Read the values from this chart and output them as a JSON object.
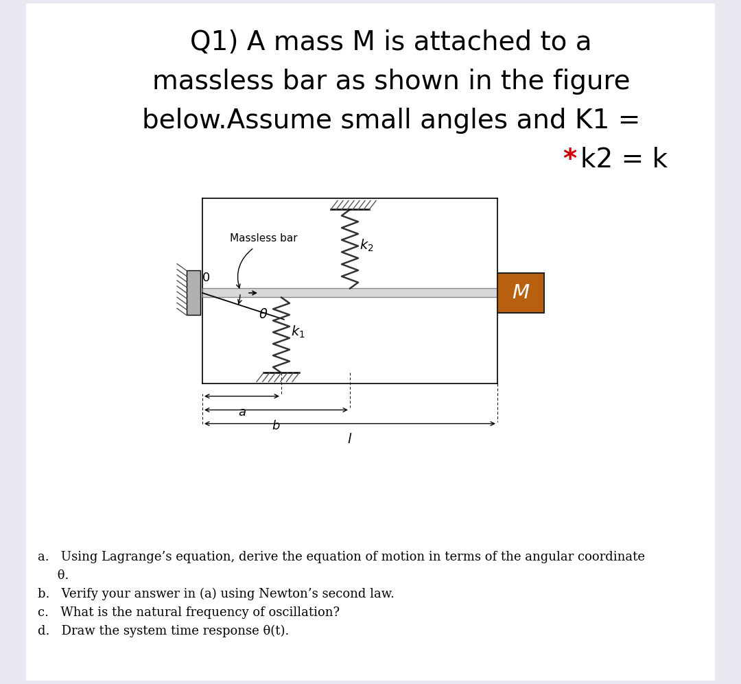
{
  "bg_color": "#e8e8f0",
  "panel_color": "#ffffff",
  "title_line1": "Q1) A mass M is attached to a",
  "title_line2": "massless bar as shown in the figure",
  "title_line3": "below.Assume small angles and K1 =",
  "title_star_color": "#cc0000",
  "title_fontsize": 28,
  "questions": [
    "a.   Using Lagrange’s equation, derive the equation of motion in terms of the angular coordinate",
    "     θ.",
    "b.   Verify your answer in (a) using Newton’s second law.",
    "c.   What is the natural frequency of oscillation?",
    "d.   Draw the system time response θ(t)."
  ],
  "question_fontsize": 13,
  "mass_color": "#b86010",
  "spring_color": "#333333",
  "hatch_color": "#555555"
}
